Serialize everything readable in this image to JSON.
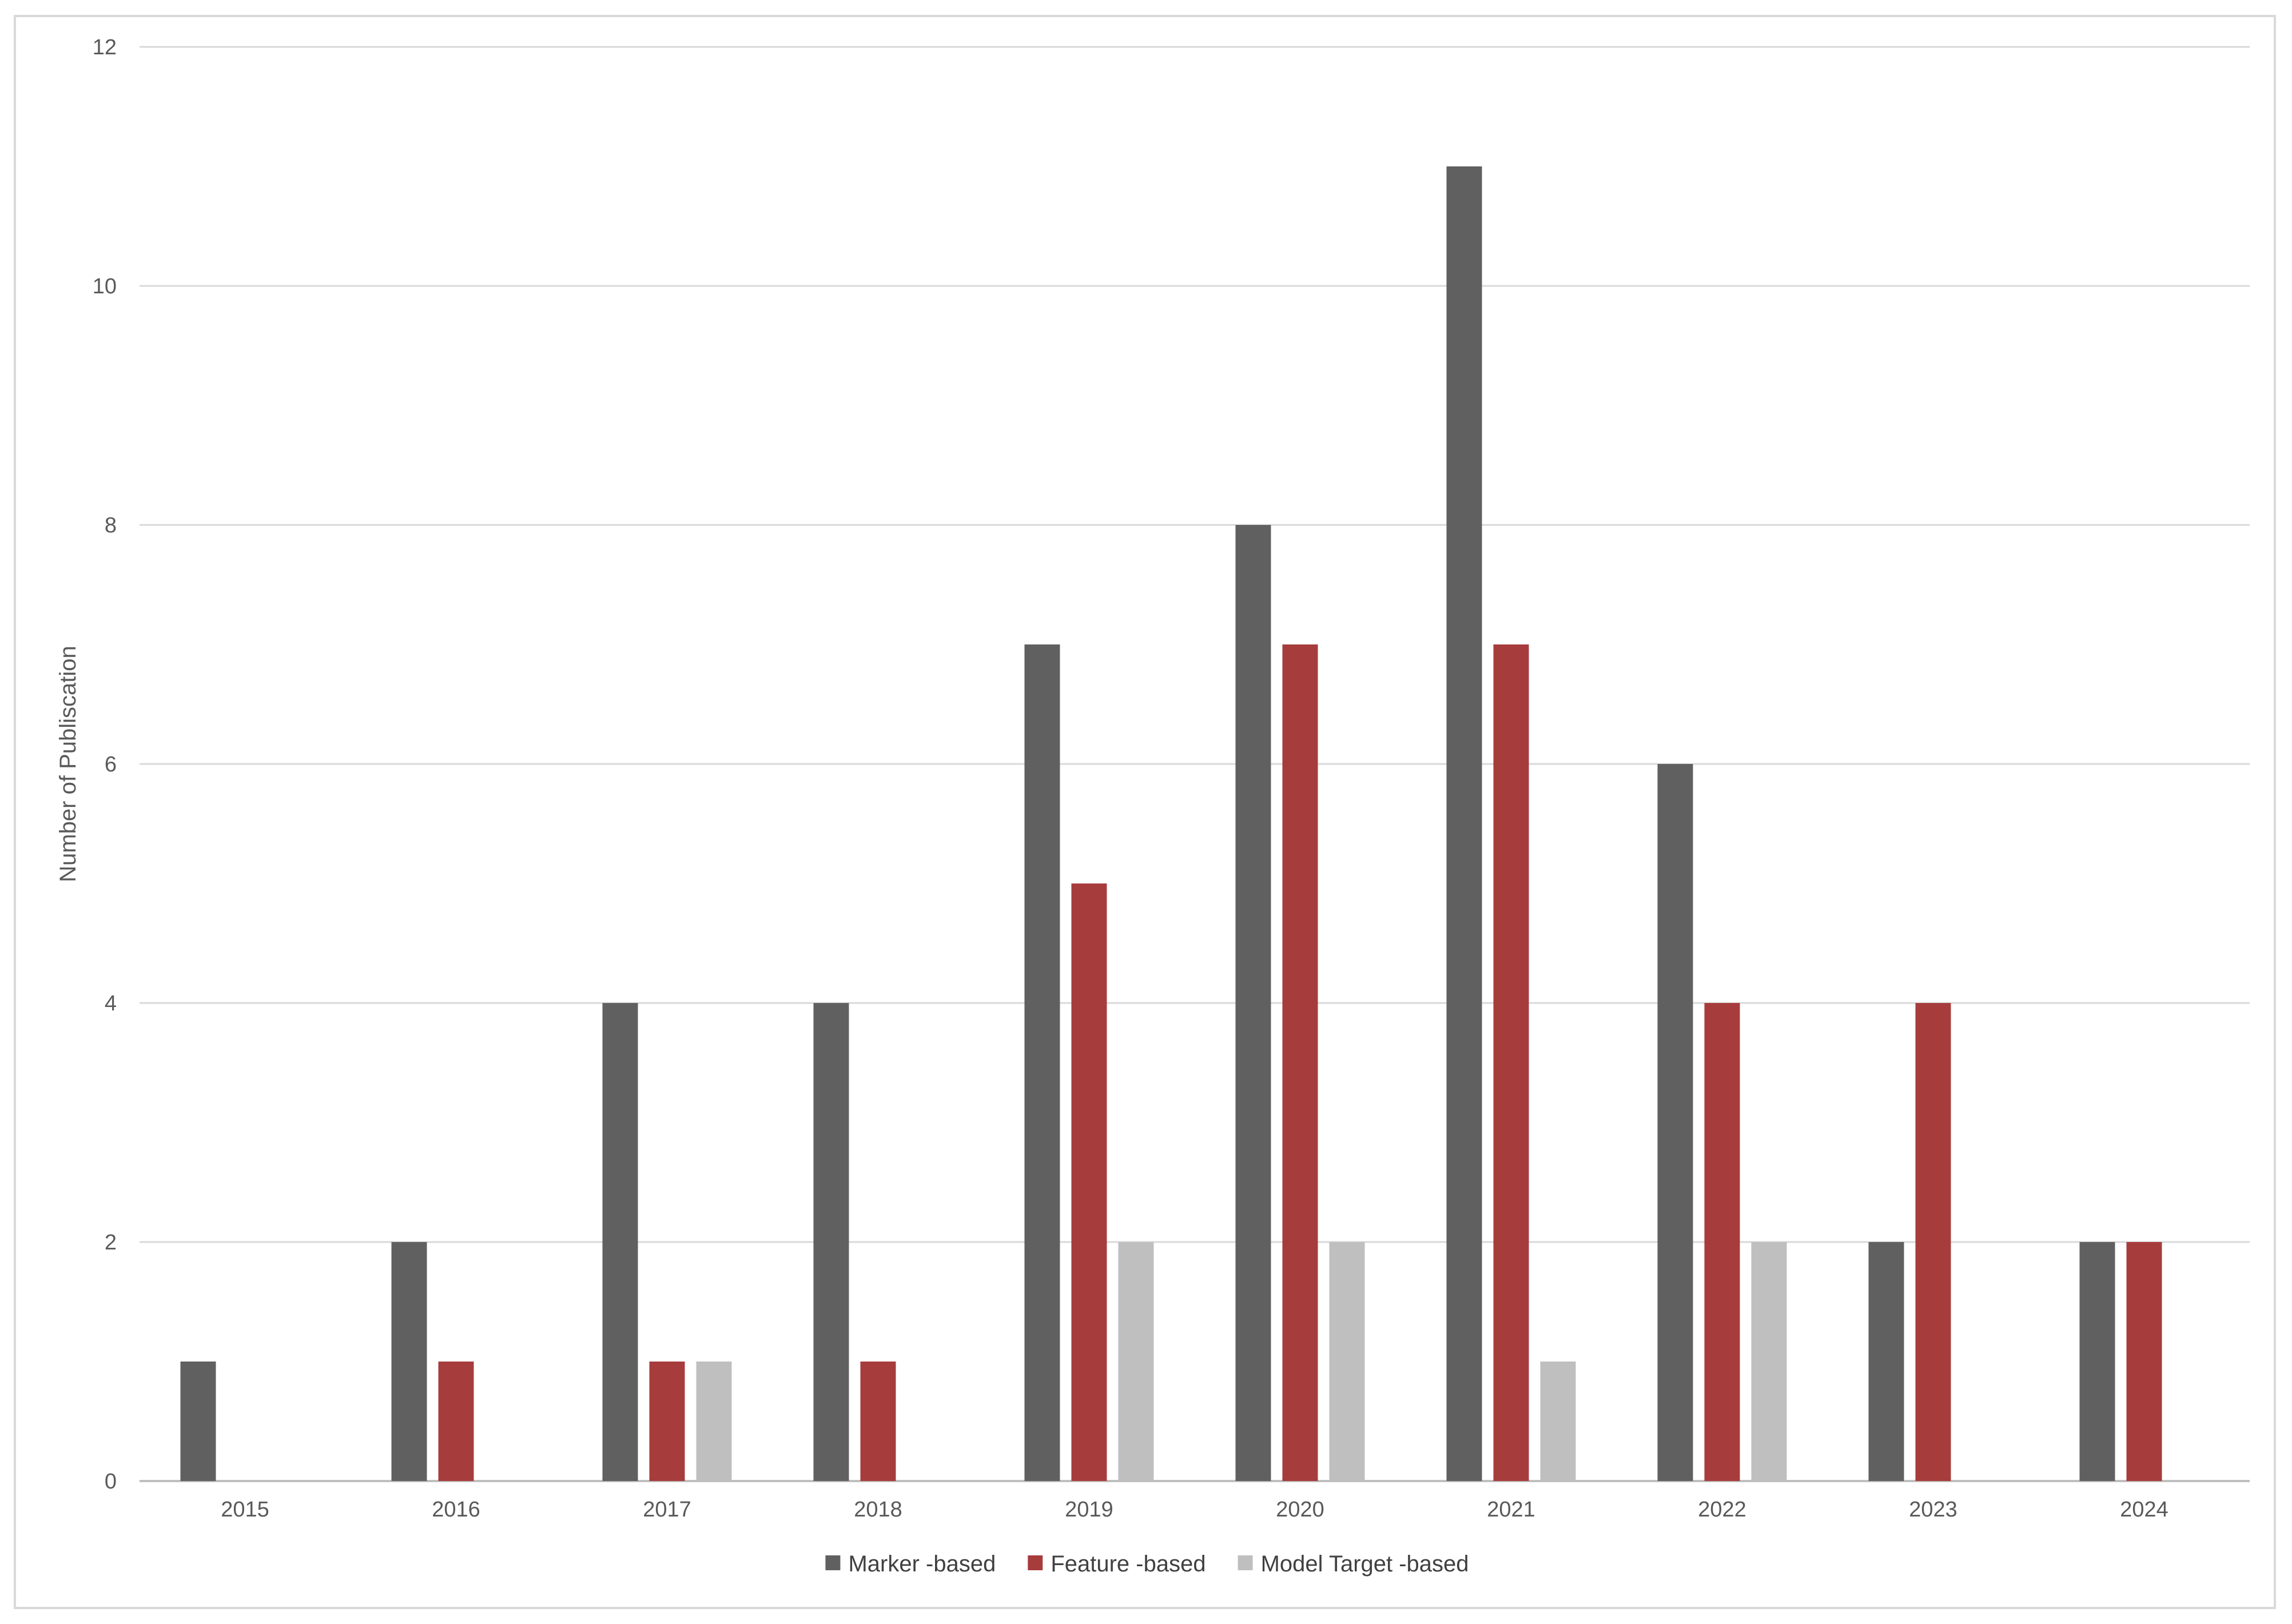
{
  "chart_data": {
    "type": "bar",
    "title": "",
    "xlabel": "",
    "ylabel": "Number of Publiscation",
    "ylim": [
      0,
      12
    ],
    "yticks": [
      0,
      2,
      4,
      6,
      8,
      10,
      12
    ],
    "grid": true,
    "legend_position": "bottom",
    "categories": [
      "2015",
      "2016",
      "2017",
      "2018",
      "2019",
      "2020",
      "2021",
      "2022",
      "2023",
      "2024"
    ],
    "series": [
      {
        "name": "Marker -based",
        "color": "#606060",
        "values": [
          1,
          2,
          4,
          4,
          7,
          8,
          11,
          6,
          2,
          2
        ]
      },
      {
        "name": "Feature  -based",
        "color": "#a73c3c",
        "values": [
          0,
          1,
          1,
          1,
          5,
          7,
          7,
          4,
          4,
          2
        ]
      },
      {
        "name": "Model Target  -based",
        "color": "#bfbfbf",
        "values": [
          0,
          0,
          1,
          0,
          2,
          2,
          1,
          2,
          0,
          0
        ]
      }
    ]
  }
}
